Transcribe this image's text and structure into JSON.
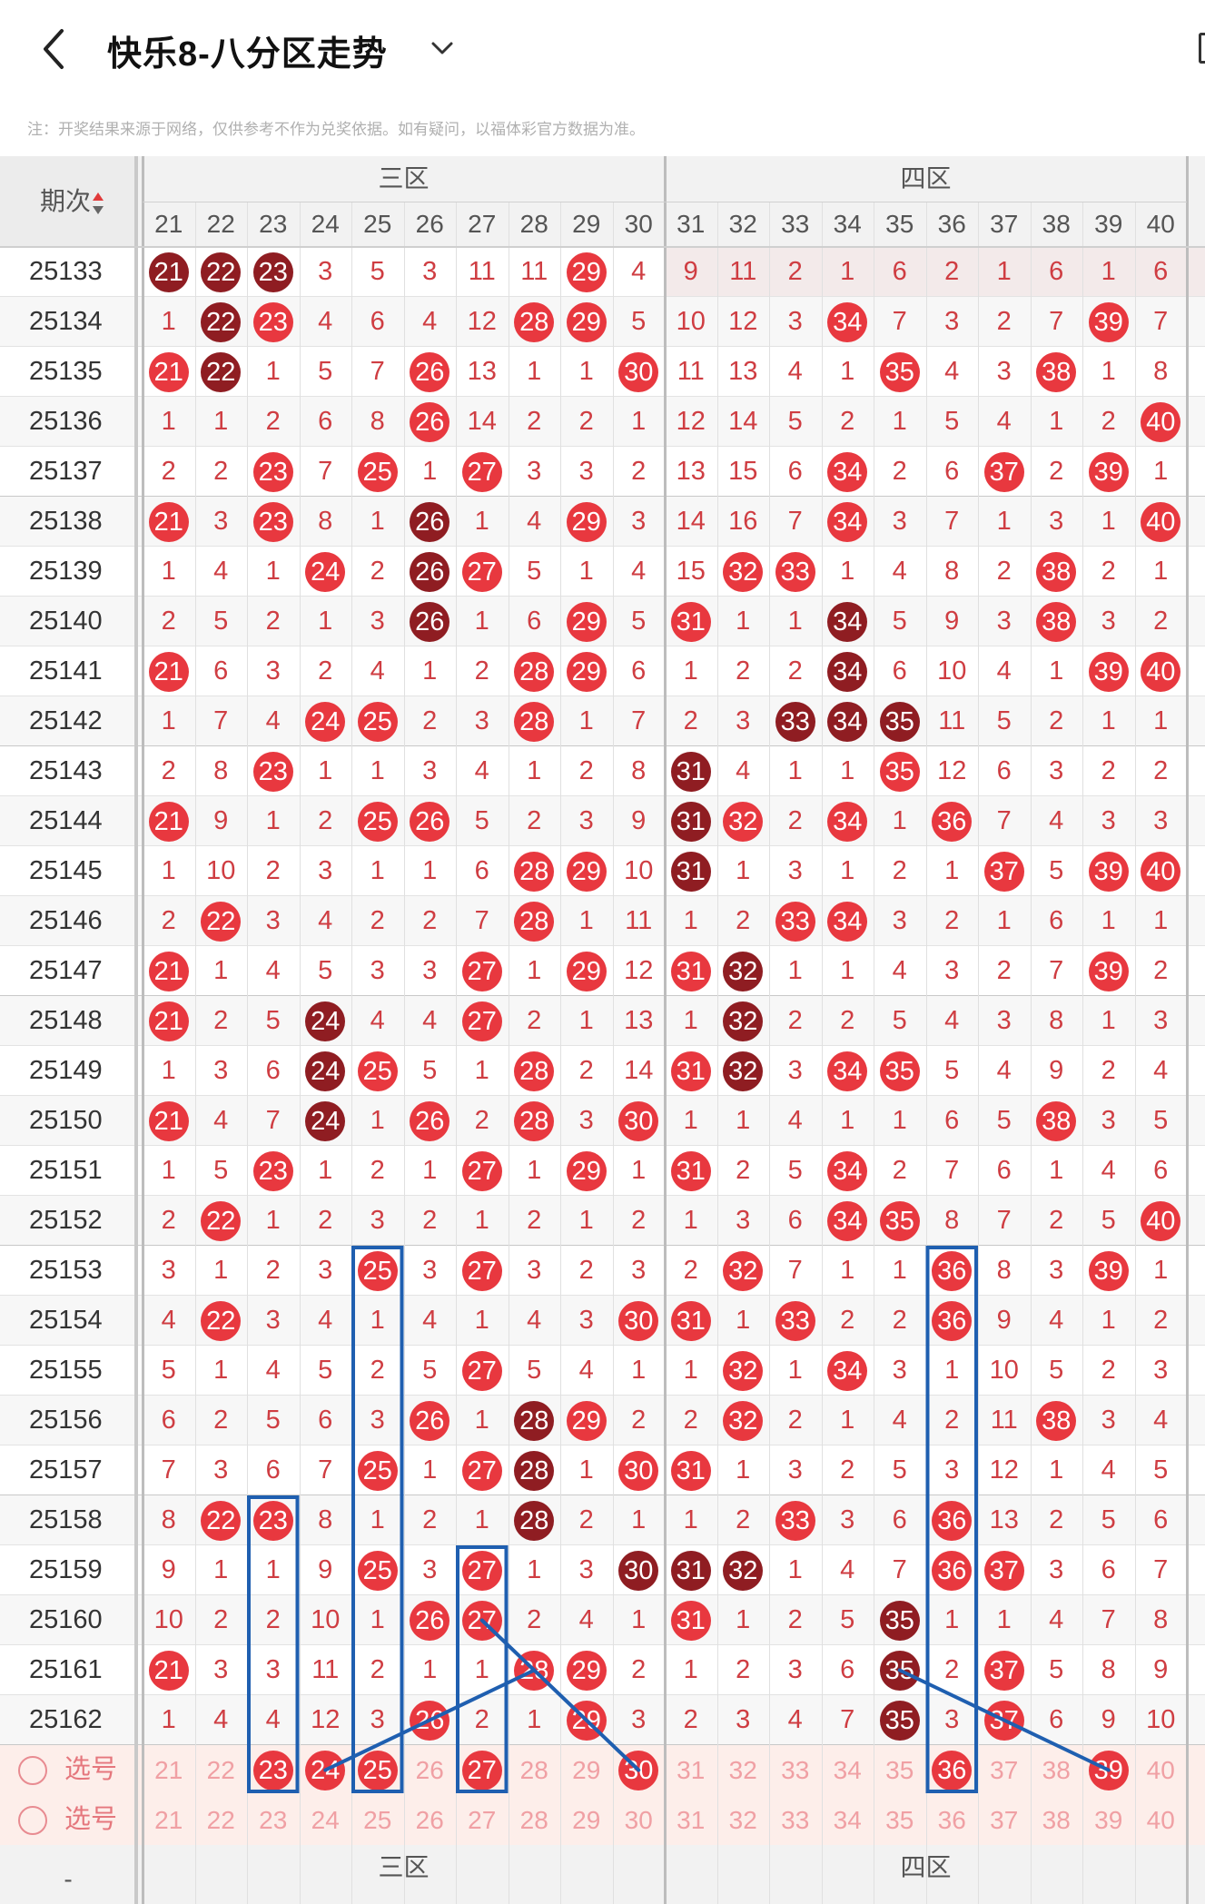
{
  "header": {
    "title": "快乐8-八分区走势",
    "back_icon": "chevron-left-icon",
    "dropdown_icon": "chevron-down-icon"
  },
  "note": "注：开奖结果来源于网络，仅供参考不作为兑奖依据。如有疑问，以福体彩官方数据为准。",
  "table": {
    "period_header": "期次",
    "sort_icon": "sort-arrows-icon",
    "zones": [
      "三区",
      "四区"
    ],
    "columns": [
      21,
      22,
      23,
      24,
      25,
      26,
      27,
      28,
      29,
      30,
      31,
      32,
      33,
      34,
      35,
      36,
      37,
      38,
      39,
      40
    ],
    "rows": [
      {
        "p": "25133",
        "v": [
          21,
          22,
          23,
          3,
          5,
          3,
          11,
          11,
          29,
          4,
          9,
          11,
          2,
          1,
          6,
          2,
          1,
          6,
          1,
          6
        ],
        "dark": [
          21,
          22,
          23
        ]
      },
      {
        "p": "25134",
        "v": [
          1,
          22,
          23,
          4,
          6,
          4,
          12,
          28,
          29,
          5,
          10,
          12,
          3,
          34,
          7,
          3,
          2,
          7,
          39,
          7
        ],
        "dark": [
          22
        ]
      },
      {
        "p": "25135",
        "v": [
          21,
          22,
          1,
          5,
          7,
          26,
          13,
          1,
          1,
          30,
          11,
          13,
          4,
          1,
          35,
          4,
          3,
          38,
          1,
          8
        ],
        "dark": [
          22
        ]
      },
      {
        "p": "25136",
        "v": [
          1,
          1,
          2,
          6,
          8,
          26,
          14,
          2,
          2,
          1,
          12,
          14,
          5,
          2,
          1,
          5,
          4,
          1,
          2,
          40
        ],
        "dark": []
      },
      {
        "p": "25137",
        "v": [
          2,
          2,
          23,
          7,
          25,
          1,
          27,
          3,
          3,
          2,
          13,
          15,
          6,
          34,
          2,
          6,
          37,
          2,
          39,
          1
        ],
        "dark": []
      },
      {
        "p": "25138",
        "v": [
          21,
          3,
          23,
          8,
          1,
          26,
          1,
          4,
          29,
          3,
          14,
          16,
          7,
          34,
          3,
          7,
          1,
          3,
          1,
          40
        ],
        "dark": [
          26
        ]
      },
      {
        "p": "25139",
        "v": [
          1,
          4,
          1,
          24,
          2,
          26,
          27,
          5,
          1,
          4,
          15,
          32,
          33,
          1,
          4,
          8,
          2,
          38,
          2,
          1
        ],
        "dark": [
          26
        ]
      },
      {
        "p": "25140",
        "v": [
          2,
          5,
          2,
          1,
          3,
          26,
          1,
          6,
          29,
          5,
          31,
          1,
          1,
          34,
          5,
          9,
          3,
          38,
          3,
          2
        ],
        "dark": [
          26,
          34
        ]
      },
      {
        "p": "25141",
        "v": [
          21,
          6,
          3,
          2,
          4,
          1,
          2,
          28,
          29,
          6,
          1,
          2,
          2,
          34,
          6,
          10,
          4,
          1,
          39,
          40
        ],
        "dark": [
          34
        ]
      },
      {
        "p": "25142",
        "v": [
          1,
          7,
          4,
          24,
          25,
          2,
          3,
          28,
          1,
          7,
          2,
          3,
          33,
          34,
          35,
          11,
          5,
          2,
          1,
          1
        ],
        "dark": [
          33,
          34,
          35
        ]
      },
      {
        "p": "25143",
        "v": [
          2,
          8,
          23,
          1,
          1,
          3,
          4,
          1,
          2,
          8,
          31,
          4,
          1,
          1,
          35,
          12,
          6,
          3,
          2,
          2
        ],
        "dark": [
          31
        ]
      },
      {
        "p": "25144",
        "v": [
          21,
          9,
          1,
          2,
          25,
          26,
          5,
          2,
          3,
          9,
          31,
          32,
          2,
          34,
          1,
          36,
          7,
          4,
          3,
          3
        ],
        "dark": [
          31
        ]
      },
      {
        "p": "25145",
        "v": [
          1,
          10,
          2,
          3,
          1,
          1,
          6,
          28,
          29,
          10,
          31,
          1,
          3,
          1,
          2,
          1,
          37,
          5,
          39,
          40
        ],
        "dark": [
          31
        ]
      },
      {
        "p": "25146",
        "v": [
          2,
          22,
          3,
          4,
          2,
          2,
          7,
          28,
          1,
          11,
          1,
          2,
          33,
          34,
          3,
          2,
          1,
          6,
          1,
          1
        ],
        "dark": []
      },
      {
        "p": "25147",
        "v": [
          21,
          1,
          4,
          5,
          3,
          3,
          27,
          1,
          29,
          12,
          31,
          32,
          1,
          1,
          4,
          3,
          2,
          7,
          39,
          2
        ],
        "dark": [
          32
        ]
      },
      {
        "p": "25148",
        "v": [
          21,
          2,
          5,
          24,
          4,
          4,
          27,
          2,
          1,
          13,
          1,
          32,
          2,
          2,
          5,
          4,
          3,
          8,
          1,
          3
        ],
        "dark": [
          24,
          32
        ]
      },
      {
        "p": "25149",
        "v": [
          1,
          3,
          6,
          24,
          25,
          5,
          1,
          28,
          2,
          14,
          31,
          32,
          3,
          34,
          35,
          5,
          4,
          9,
          2,
          4
        ],
        "dark": [
          24,
          32
        ]
      },
      {
        "p": "25150",
        "v": [
          21,
          4,
          7,
          24,
          1,
          26,
          2,
          28,
          3,
          30,
          1,
          1,
          4,
          1,
          1,
          6,
          5,
          38,
          3,
          5
        ],
        "dark": [
          24
        ]
      },
      {
        "p": "25151",
        "v": [
          1,
          5,
          23,
          1,
          2,
          1,
          27,
          1,
          29,
          1,
          31,
          2,
          5,
          34,
          2,
          7,
          6,
          1,
          4,
          6
        ],
        "dark": []
      },
      {
        "p": "25152",
        "v": [
          2,
          22,
          1,
          2,
          3,
          2,
          1,
          2,
          1,
          2,
          1,
          3,
          6,
          34,
          35,
          8,
          7,
          2,
          5,
          40
        ],
        "dark": []
      },
      {
        "p": "25153",
        "v": [
          3,
          1,
          2,
          3,
          25,
          3,
          27,
          3,
          2,
          3,
          2,
          32,
          7,
          1,
          1,
          36,
          8,
          3,
          39,
          1
        ],
        "dark": []
      },
      {
        "p": "25154",
        "v": [
          4,
          22,
          3,
          4,
          1,
          4,
          1,
          4,
          3,
          30,
          31,
          1,
          33,
          2,
          2,
          36,
          9,
          4,
          1,
          2
        ],
        "dark": []
      },
      {
        "p": "25155",
        "v": [
          5,
          1,
          4,
          5,
          2,
          5,
          27,
          5,
          4,
          1,
          1,
          32,
          1,
          34,
          3,
          1,
          10,
          5,
          2,
          3
        ],
        "dark": []
      },
      {
        "p": "25156",
        "v": [
          6,
          2,
          5,
          6,
          3,
          26,
          1,
          28,
          29,
          2,
          2,
          32,
          2,
          1,
          4,
          2,
          11,
          38,
          3,
          4
        ],
        "dark": [
          28
        ]
      },
      {
        "p": "25157",
        "v": [
          7,
          3,
          6,
          7,
          25,
          1,
          27,
          28,
          1,
          30,
          31,
          1,
          3,
          2,
          5,
          3,
          12,
          1,
          4,
          5
        ],
        "dark": [
          28
        ]
      },
      {
        "p": "25158",
        "v": [
          8,
          22,
          23,
          8,
          1,
          2,
          1,
          28,
          2,
          1,
          1,
          2,
          33,
          3,
          6,
          36,
          13,
          2,
          5,
          6
        ],
        "dark": [
          28
        ]
      },
      {
        "p": "25159",
        "v": [
          9,
          1,
          1,
          9,
          25,
          3,
          27,
          1,
          3,
          30,
          31,
          32,
          1,
          4,
          7,
          36,
          37,
          3,
          6,
          7
        ],
        "dark": [
          30,
          31,
          32
        ]
      },
      {
        "p": "25160",
        "v": [
          10,
          2,
          2,
          10,
          1,
          26,
          27,
          2,
          4,
          1,
          31,
          1,
          2,
          5,
          35,
          1,
          1,
          4,
          7,
          8
        ],
        "dark": [
          35
        ]
      },
      {
        "p": "25161",
        "v": [
          21,
          3,
          3,
          11,
          2,
          1,
          1,
          28,
          29,
          2,
          1,
          2,
          3,
          6,
          35,
          2,
          37,
          5,
          8,
          9
        ],
        "dark": [
          35
        ]
      },
      {
        "p": "25162",
        "v": [
          1,
          4,
          4,
          12,
          3,
          26,
          2,
          1,
          29,
          3,
          2,
          3,
          4,
          7,
          35,
          3,
          37,
          6,
          9,
          10
        ],
        "dark": [
          35
        ]
      }
    ],
    "prediction_row": [
      23,
      24,
      25,
      27,
      30,
      36,
      39
    ],
    "select_label": "选号",
    "bottom_zones": [
      "三区",
      "四区"
    ],
    "bottom_period_label": "-"
  },
  "colors": {
    "red_ball": "#e8383f",
    "dark_ball": "#8f1d22",
    "missing_text": "#cf3d42",
    "annotation_blue": "#1f5fb0"
  }
}
